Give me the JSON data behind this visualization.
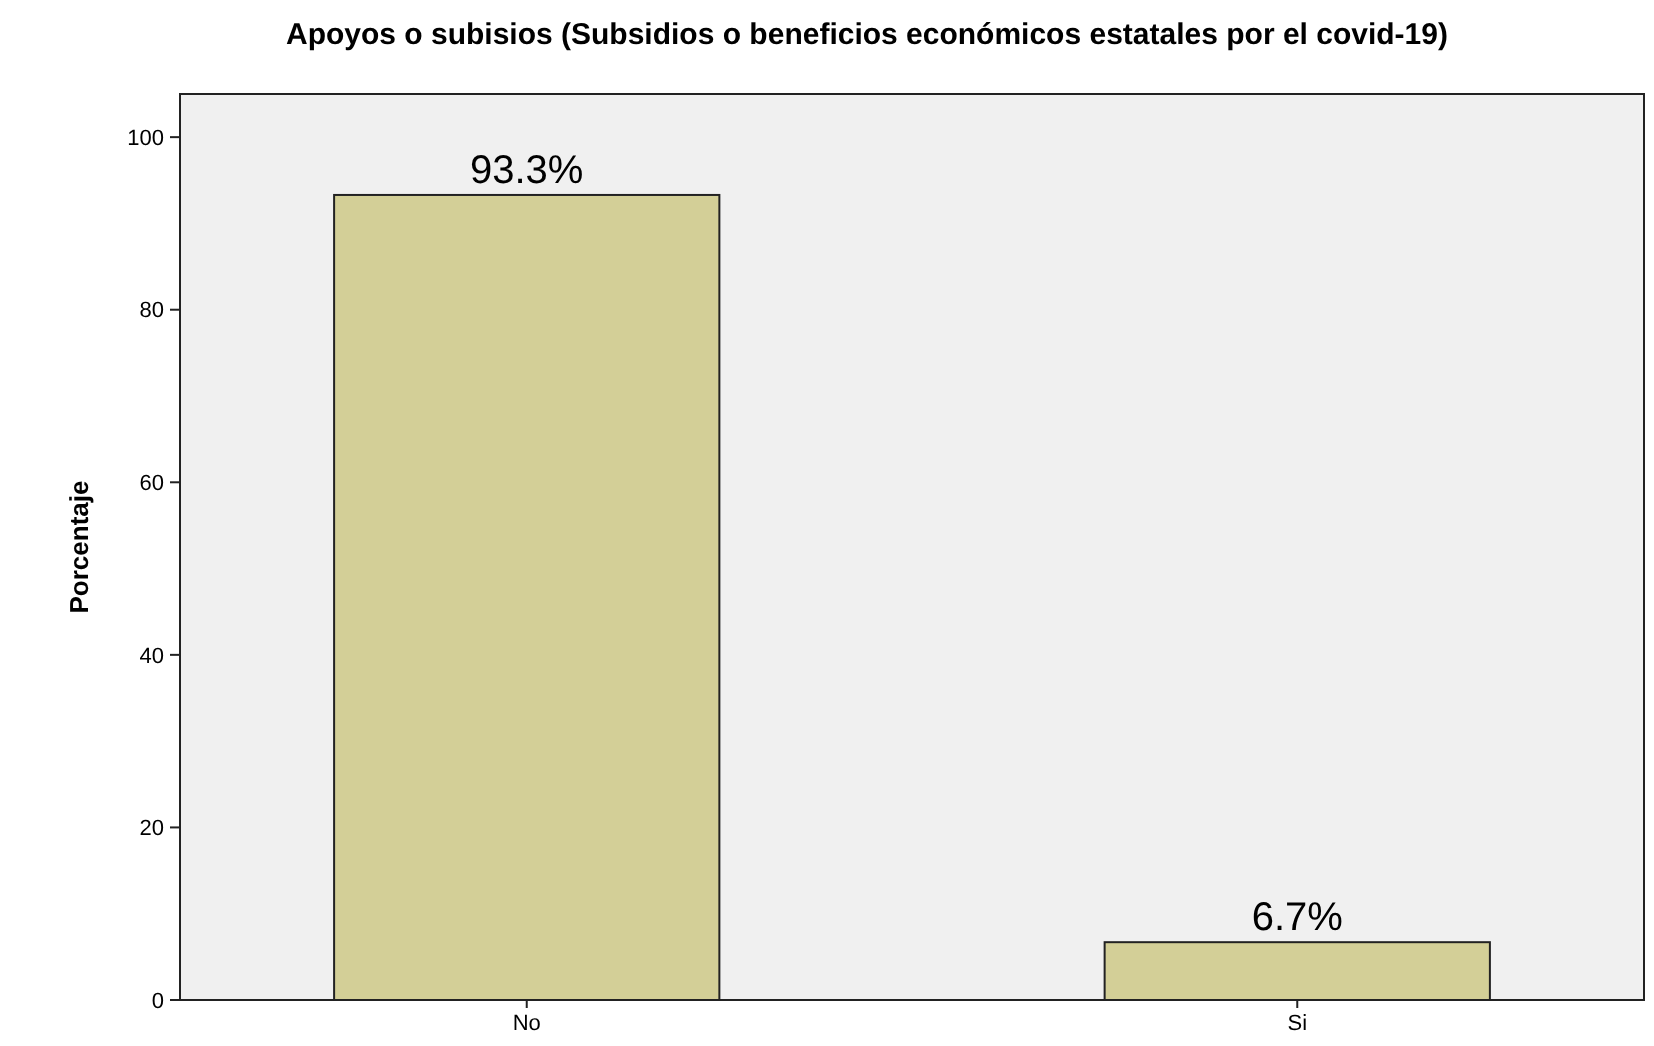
{
  "chart_data": {
    "type": "bar",
    "title": "Apoyos o subisios (Subsidios o beneficios económicos estatales por el covid-19)",
    "ylabel": "Porcentaje",
    "categories": [
      "No",
      "Si"
    ],
    "values": [
      93.3,
      6.7
    ],
    "value_labels": [
      "93.3%",
      "6.7%"
    ],
    "color": "#d3cf97",
    "ylim": [
      0,
      105
    ],
    "yticks": [
      0,
      20,
      40,
      60,
      80,
      100
    ],
    "grid": false
  }
}
